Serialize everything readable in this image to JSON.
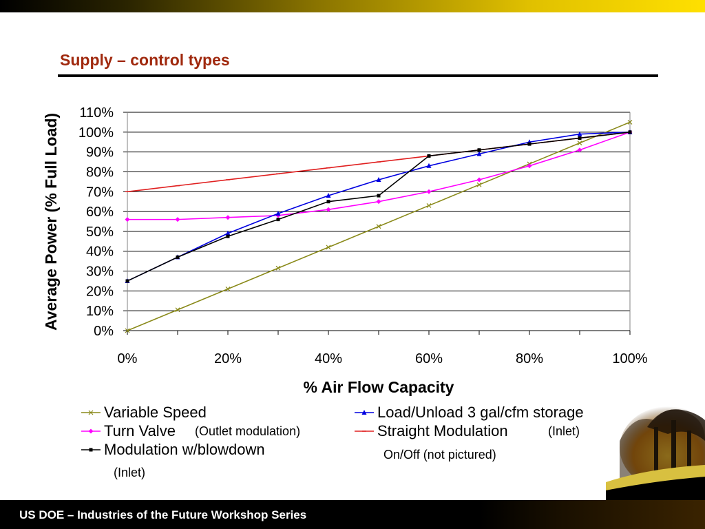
{
  "slide": {
    "title": "Supply – control types",
    "footer": "US DOE – Industries of the Future Workshop Series"
  },
  "chart_data": {
    "type": "line",
    "title": "",
    "xlabel": "% Air Flow Capacity",
    "ylabel": "Average Power (% Full Load)",
    "xlim": [
      0,
      100
    ],
    "ylim": [
      0,
      110
    ],
    "x_ticks": [
      "0%",
      "20%",
      "40%",
      "60%",
      "80%",
      "100%"
    ],
    "y_ticks": [
      "0%",
      "10%",
      "20%",
      "30%",
      "40%",
      "50%",
      "60%",
      "70%",
      "80%",
      "90%",
      "100%",
      "110%"
    ],
    "grid": "horizontal",
    "legend_position": "bottom",
    "series": [
      {
        "name": "Variable Speed",
        "color": "#8a8a1a",
        "marker": "x",
        "x": [
          0,
          10,
          20,
          30,
          40,
          50,
          60,
          70,
          80,
          90,
          100
        ],
        "y": [
          0,
          10.5,
          21,
          31.5,
          42,
          52.5,
          63,
          73.5,
          84,
          94.5,
          105
        ]
      },
      {
        "name": "Load/Unload 3 gal/cfm storage",
        "color": "#0000e0",
        "marker": "triangle",
        "x": [
          0,
          10,
          20,
          30,
          40,
          50,
          60,
          70,
          80,
          90,
          100
        ],
        "y": [
          25,
          37,
          49,
          59,
          68,
          76,
          83,
          89,
          95,
          99,
          100
        ]
      },
      {
        "name": "Turn Valve",
        "color": "#ff00ff",
        "marker": "diamond",
        "x": [
          0,
          10,
          20,
          30,
          40,
          50,
          60,
          70,
          80,
          90,
          100
        ],
        "y": [
          56,
          56,
          57,
          58,
          61,
          65,
          70,
          76,
          83,
          91,
          100
        ]
      },
      {
        "name": "Straight Modulation",
        "color": "#e02020",
        "marker": "dash",
        "x": [
          0,
          10,
          20,
          30,
          40,
          50,
          60,
          70,
          80,
          90,
          100
        ],
        "y": [
          70,
          73,
          76,
          79,
          82,
          85,
          88,
          91,
          94,
          97,
          100
        ]
      },
      {
        "name": "Modulation w/blowdown",
        "color": "#000000",
        "marker": "square",
        "x": [
          0,
          10,
          20,
          30,
          40,
          50,
          60,
          70,
          80,
          90,
          100
        ],
        "y": [
          25,
          37,
          47.5,
          56,
          65,
          68,
          88,
          91,
          94,
          97,
          100
        ]
      }
    ],
    "legend": [
      {
        "label": "Variable Speed",
        "series": 0
      },
      {
        "label": "Load/Unload 3 gal/cfm storage",
        "series": 1
      },
      {
        "label": "Turn Valve",
        "series": 2,
        "note": "(Outlet modulation)"
      },
      {
        "label": "Straight Modulation",
        "series": 3,
        "note": "(Inlet)"
      },
      {
        "label": "Modulation w/blowdown",
        "series": 4,
        "note": "(Inlet)"
      }
    ],
    "annotation": "On/Off (not pictured)"
  }
}
